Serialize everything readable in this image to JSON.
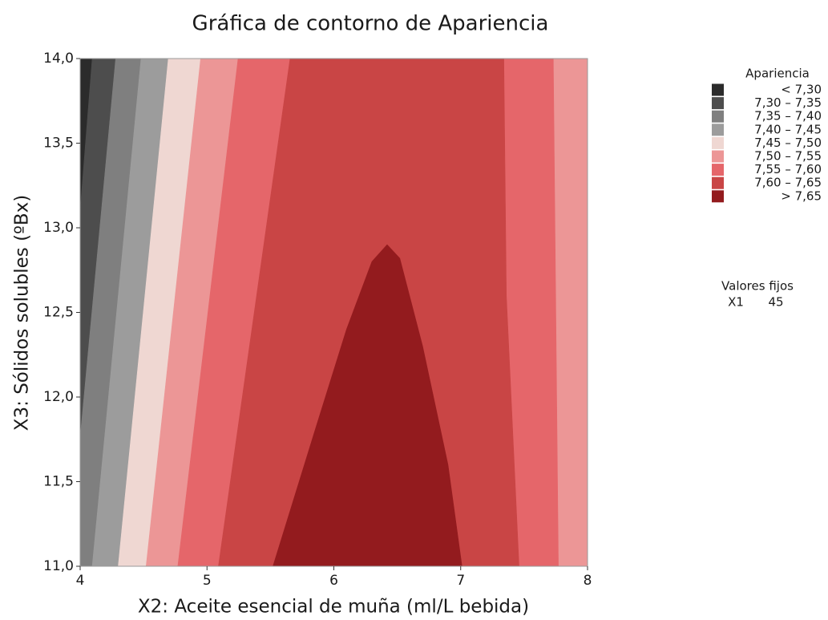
{
  "chart_data": {
    "type": "contour",
    "title": "Gráfica de contorno de Apariencia",
    "x_label": "X2: Aceite esencial de muña (ml/L bebida)",
    "y_label": "X3: Sólidos solubles (ºBx)",
    "xlim": [
      4,
      8
    ],
    "ylim": [
      11,
      14
    ],
    "xticks": [
      4,
      5,
      6,
      7,
      8
    ],
    "yticks": [
      {
        "value": 11,
        "label": "11,0"
      },
      {
        "value": 11.5,
        "label": "11,5"
      },
      {
        "value": 12,
        "label": "12,0"
      },
      {
        "value": 12.5,
        "label": "12,5"
      },
      {
        "value": 13,
        "label": "13,0"
      },
      {
        "value": 13.5,
        "label": "13,5"
      },
      {
        "value": 14,
        "label": "14,0"
      }
    ],
    "legend_title": "Apariencia",
    "legend": [
      {
        "label": "< 7,30",
        "color": "#2b2b2b",
        "regions": [
          {
            "x": [
              4,
              4.095,
              4
            ],
            "y": [
              14,
              14,
              13.1
            ]
          }
        ]
      },
      {
        "label": "7,30 – 7,35",
        "color": "#4d4d4d",
        "regions": [
          {
            "x": [
              4.095,
              4.28,
              4,
              4
            ],
            "y": [
              14,
              14,
              11.76,
              13.1
            ]
          }
        ]
      },
      {
        "label": "7,35 – 7,40",
        "color": "#7f7f7f",
        "regions": [
          {
            "x": [
              4.28,
              4.48,
              4.095,
              4,
              4
            ],
            "y": [
              14,
              14,
              11,
              11,
              11.76
            ]
          }
        ]
      },
      {
        "label": "7,40 – 7,45",
        "color": "#9c9c9c",
        "regions": [
          {
            "x": [
              4.48,
              4.695,
              4.3,
              4.095
            ],
            "y": [
              14,
              14,
              11,
              11
            ]
          }
        ]
      },
      {
        "label": "7,45 – 7,50",
        "color": "#efd7d2",
        "regions": [
          {
            "x": [
              4.695,
              4.95,
              4.52,
              4.3
            ],
            "y": [
              14,
              14,
              11,
              11
            ]
          }
        ]
      },
      {
        "label": "7,50 – 7,55",
        "color": "#ec9696",
        "regions": [
          {
            "x": [
              4.95,
              5.245,
              4.77,
              4.52
            ],
            "y": [
              14,
              14,
              11,
              11
            ]
          },
          {
            "x": [
              7.73,
              8,
              8,
              7.77
            ],
            "y": [
              14,
              14,
              11,
              11
            ]
          }
        ]
      },
      {
        "label": "7,55 – 7,60",
        "color": "#e5666a",
        "regions": [
          {
            "x": [
              5.245,
              5.655,
              5.09,
              4.77
            ],
            "y": [
              14,
              14,
              11,
              11
            ]
          },
          {
            "x": [
              7.34,
              7.73,
              7.77,
              7.46,
              7.36
            ],
            "y": [
              14,
              14,
              11,
              11,
              12.6
            ]
          }
        ]
      },
      {
        "label": "7,60 – 7,65",
        "color": "#c94545",
        "regions": [
          {
            "x": [
              5.655,
              7.34,
              7.36,
              7.46,
              7.01,
              6.9,
              6.7,
              6.52,
              6.42,
              6.3,
              6.1,
              5.85,
              5.52,
              5.09
            ],
            "y": [
              14,
              14,
              12.6,
              11,
              11,
              11.6,
              12.3,
              12.82,
              12.9,
              12.8,
              12.4,
              11.8,
              11,
              11
            ]
          }
        ]
      },
      {
        "label": "> 7,65",
        "color": "#931b1e",
        "regions": [
          {
            "x": [
              5.52,
              5.85,
              6.1,
              6.3,
              6.42,
              6.52,
              6.7,
              6.9,
              7.01
            ],
            "y": [
              11,
              11.8,
              12.4,
              12.8,
              12.9,
              12.82,
              12.3,
              11.6,
              11
            ]
          }
        ]
      }
    ],
    "fixed_title": "Valores fijos",
    "fixed_name": "X1",
    "fixed_value": "45"
  }
}
